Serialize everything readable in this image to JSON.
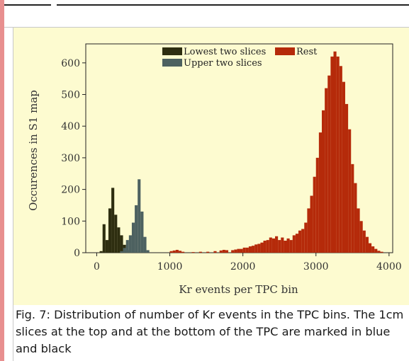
{
  "chart_data": {
    "type": "bar",
    "title": "",
    "xlabel": "Kr events per TPC bin",
    "ylabel": "Occurences in S1 map",
    "xlim": [
      -150,
      4050
    ],
    "ylim": [
      0,
      660
    ],
    "xticks": [
      0,
      1000,
      2000,
      3000,
      4000
    ],
    "yticks": [
      0,
      100,
      200,
      300,
      400,
      500,
      600
    ],
    "grid": false,
    "legend_placement": "top",
    "bin_width": 40,
    "series": [
      {
        "name": "Lowest two slices",
        "color": "#2e2e10",
        "bins": [
          [
            40,
            5
          ],
          [
            80,
            90
          ],
          [
            120,
            40
          ],
          [
            160,
            140
          ],
          [
            200,
            205
          ],
          [
            240,
            120
          ],
          [
            280,
            80
          ],
          [
            320,
            55
          ],
          [
            360,
            25
          ],
          [
            400,
            8
          ]
        ]
      },
      {
        "name": "Upper two slices",
        "color": "#4d6160",
        "bins": [
          [
            320,
            5
          ],
          [
            360,
            15
          ],
          [
            400,
            40
          ],
          [
            440,
            55
          ],
          [
            480,
            95
          ],
          [
            520,
            150
          ],
          [
            560,
            232
          ],
          [
            600,
            130
          ],
          [
            640,
            50
          ],
          [
            680,
            8
          ]
        ]
      },
      {
        "name": "Rest",
        "color": "#b52a0a",
        "bins": [
          [
            1000,
            5
          ],
          [
            1040,
            7
          ],
          [
            1080,
            9
          ],
          [
            1120,
            6
          ],
          [
            1160,
            3
          ],
          [
            1300,
            2
          ],
          [
            1400,
            3
          ],
          [
            1500,
            3
          ],
          [
            1600,
            5
          ],
          [
            1680,
            7
          ],
          [
            1720,
            9
          ],
          [
            1760,
            8
          ],
          [
            1840,
            8
          ],
          [
            1880,
            10
          ],
          [
            1920,
            12
          ],
          [
            1960,
            12
          ],
          [
            2000,
            16
          ],
          [
            2040,
            16
          ],
          [
            2080,
            20
          ],
          [
            2120,
            22
          ],
          [
            2160,
            26
          ],
          [
            2200,
            28
          ],
          [
            2240,
            32
          ],
          [
            2280,
            38
          ],
          [
            2320,
            40
          ],
          [
            2360,
            48
          ],
          [
            2400,
            45
          ],
          [
            2440,
            52
          ],
          [
            2480,
            40
          ],
          [
            2520,
            48
          ],
          [
            2560,
            38
          ],
          [
            2600,
            45
          ],
          [
            2640,
            40
          ],
          [
            2680,
            55
          ],
          [
            2720,
            60
          ],
          [
            2760,
            70
          ],
          [
            2800,
            75
          ],
          [
            2840,
            95
          ],
          [
            2880,
            140
          ],
          [
            2920,
            180
          ],
          [
            2960,
            240
          ],
          [
            3000,
            300
          ],
          [
            3040,
            380
          ],
          [
            3080,
            450
          ],
          [
            3120,
            520
          ],
          [
            3160,
            560
          ],
          [
            3200,
            620
          ],
          [
            3240,
            636
          ],
          [
            3280,
            620
          ],
          [
            3320,
            590
          ],
          [
            3360,
            540
          ],
          [
            3400,
            470
          ],
          [
            3440,
            390
          ],
          [
            3480,
            280
          ],
          [
            3520,
            220
          ],
          [
            3560,
            140
          ],
          [
            3600,
            100
          ],
          [
            3640,
            70
          ],
          [
            3680,
            50
          ],
          [
            3720,
            30
          ],
          [
            3760,
            20
          ],
          [
            3800,
            12
          ],
          [
            3840,
            6
          ],
          [
            3880,
            3
          ]
        ]
      }
    ]
  },
  "caption": "Fig. 7: Distribution of number of Kr events in the TPC bins. The 1cm slices at the top and at the bottom of the TPC are marked in blue and black"
}
